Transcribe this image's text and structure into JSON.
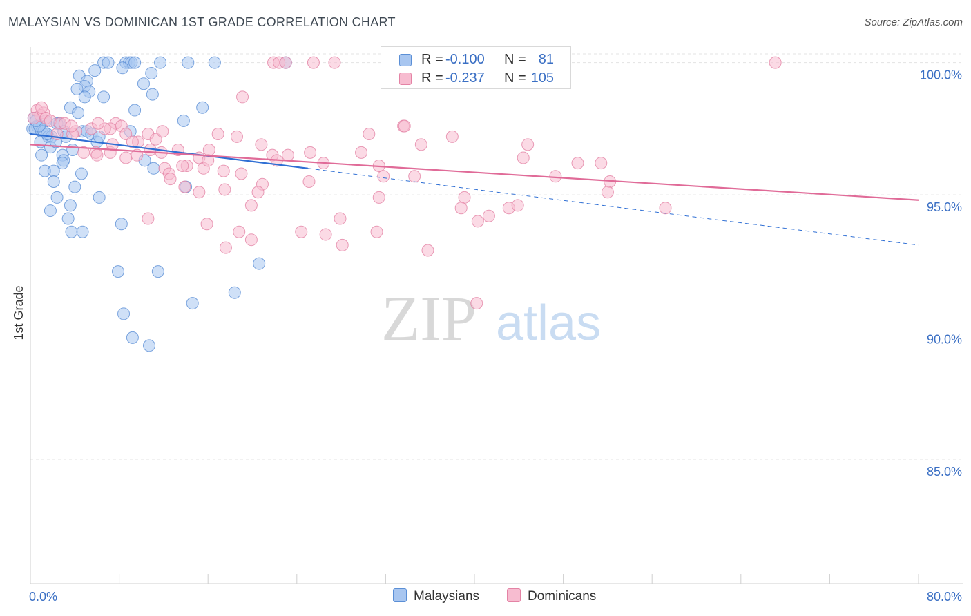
{
  "title": "MALAYSIAN VS DOMINICAN 1ST GRADE CORRELATION CHART",
  "source": "Source: ZipAtlas.com",
  "watermark": {
    "zip": "ZIP",
    "atlas": "atlas"
  },
  "stats": [
    {
      "r_label": "R =",
      "r_value": "-0.100",
      "n_label": "N =",
      "n_value": "81",
      "color": "#a8c6f0",
      "border": "#5b8fd6"
    },
    {
      "r_label": "R =",
      "r_value": "-0.237",
      "n_label": "N =",
      "n_value": "105",
      "color": "#f7bcd0",
      "border": "#e483a5"
    }
  ],
  "legend": [
    {
      "label": "Malaysians",
      "color": "#a8c6f0",
      "border": "#5b8fd6"
    },
    {
      "label": "Dominicans",
      "color": "#f7bcd0",
      "border": "#e483a5"
    }
  ],
  "chart_data": {
    "type": "scatter",
    "title": "MALAYSIAN VS DOMINICAN 1ST GRADE CORRELATION CHART",
    "xlabel": "",
    "ylabel": "1st Grade",
    "xlim": [
      0,
      80
    ],
    "ylim": [
      80.3,
      100.8
    ],
    "x_tick_labels": [
      {
        "value": 0,
        "label": "0.0%"
      },
      {
        "value": 80,
        "label": "80.0%"
      }
    ],
    "y_tick_labels": [
      {
        "value": 100,
        "label": "100.0%"
      },
      {
        "value": 95,
        "label": "95.0%"
      },
      {
        "value": 90,
        "label": "90.0%"
      },
      {
        "value": 85,
        "label": "85.0%"
      }
    ],
    "grid": true,
    "legend_position": "bottom-center",
    "series": [
      {
        "name": "Malaysians",
        "color": "#a8c6f0",
        "stroke": "#5b8fd6",
        "line_color": "#2f6fd4",
        "trend": {
          "x": [
            0,
            25
          ],
          "y": [
            97.3,
            96.0
          ],
          "dashed_to": [
            80,
            93.1
          ]
        },
        "points": [
          [
            6.6,
            100
          ],
          [
            7.0,
            100
          ],
          [
            8.6,
            100
          ],
          [
            8.9,
            100
          ],
          [
            9.1,
            100
          ],
          [
            9.4,
            100
          ],
          [
            11.7,
            100
          ],
          [
            14.2,
            100
          ],
          [
            16.6,
            100
          ],
          [
            23.0,
            100
          ],
          [
            8.3,
            99.8
          ],
          [
            5.8,
            99.7
          ],
          [
            10.9,
            99.6
          ],
          [
            4.4,
            99.5
          ],
          [
            5.1,
            99.3
          ],
          [
            10.2,
            99.2
          ],
          [
            4.9,
            99.1
          ],
          [
            4.2,
            99.0
          ],
          [
            5.3,
            98.9
          ],
          [
            11.0,
            98.8
          ],
          [
            4.9,
            98.7
          ],
          [
            6.6,
            98.7
          ],
          [
            3.6,
            98.3
          ],
          [
            9.4,
            98.2
          ],
          [
            15.5,
            98.3
          ],
          [
            4.3,
            98.1
          ],
          [
            0.3,
            97.9
          ],
          [
            1.4,
            97.8
          ],
          [
            2.6,
            97.7
          ],
          [
            2.4,
            97.7
          ],
          [
            0.6,
            97.6
          ],
          [
            0.2,
            97.5
          ],
          [
            0.4,
            97.5
          ],
          [
            1.0,
            97.4
          ],
          [
            1.2,
            97.4
          ],
          [
            3.0,
            97.4
          ],
          [
            4.7,
            97.4
          ],
          [
            5.1,
            97.4
          ],
          [
            5.5,
            97.3
          ],
          [
            1.6,
            97.2
          ],
          [
            1.9,
            97.2
          ],
          [
            3.2,
            97.2
          ],
          [
            0.9,
            97.0
          ],
          [
            6.0,
            97.0
          ],
          [
            1.8,
            96.8
          ],
          [
            3.8,
            96.7
          ],
          [
            2.9,
            96.5
          ],
          [
            1.0,
            96.5
          ],
          [
            3.0,
            96.3
          ],
          [
            2.9,
            96.2
          ],
          [
            10.3,
            96.3
          ],
          [
            13.8,
            97.8
          ],
          [
            9.0,
            97.4
          ],
          [
            11.1,
            96.0
          ],
          [
            1.3,
            95.9
          ],
          [
            2.1,
            95.9
          ],
          [
            4.6,
            95.8
          ],
          [
            2.1,
            95.5
          ],
          [
            4.0,
            95.3
          ],
          [
            14.0,
            95.3
          ],
          [
            2.4,
            94.9
          ],
          [
            6.2,
            94.9
          ],
          [
            3.6,
            94.6
          ],
          [
            1.8,
            94.4
          ],
          [
            3.4,
            94.1
          ],
          [
            8.2,
            93.9
          ],
          [
            3.7,
            93.6
          ],
          [
            4.7,
            93.6
          ],
          [
            20.6,
            92.4
          ],
          [
            7.9,
            92.1
          ],
          [
            11.5,
            92.1
          ],
          [
            18.4,
            91.3
          ],
          [
            14.6,
            90.9
          ],
          [
            8.4,
            90.5
          ],
          [
            9.2,
            89.6
          ],
          [
            10.7,
            89.3
          ],
          [
            0.8,
            97.6
          ],
          [
            1.5,
            97.3
          ],
          [
            6.2,
            97.2
          ],
          [
            2.3,
            97.0
          ],
          [
            0.5,
            97.8
          ]
        ]
      },
      {
        "name": "Dominicans",
        "color": "#f7bcd0",
        "stroke": "#e483a5",
        "line_color": "#e06b98",
        "trend": {
          "x": [
            0,
            80
          ],
          "y": [
            96.9,
            94.8
          ]
        },
        "points": [
          [
            21.9,
            100
          ],
          [
            22.4,
            100
          ],
          [
            23.0,
            100
          ],
          [
            25.5,
            100
          ],
          [
            27.4,
            100
          ],
          [
            32.1,
            100
          ],
          [
            67.1,
            100
          ],
          [
            19.1,
            98.7
          ],
          [
            0.6,
            98.2
          ],
          [
            1.2,
            98.1
          ],
          [
            0.9,
            98.0
          ],
          [
            1.4,
            97.9
          ],
          [
            1.8,
            97.8
          ],
          [
            2.7,
            97.7
          ],
          [
            3.1,
            97.7
          ],
          [
            7.7,
            97.7
          ],
          [
            8.2,
            97.6
          ],
          [
            7.2,
            97.5
          ],
          [
            6.7,
            97.5
          ],
          [
            5.5,
            97.5
          ],
          [
            4.1,
            97.4
          ],
          [
            3.8,
            97.3
          ],
          [
            8.6,
            97.3
          ],
          [
            10.6,
            97.3
          ],
          [
            16.9,
            97.3
          ],
          [
            18.6,
            97.2
          ],
          [
            30.5,
            97.3
          ],
          [
            33.6,
            97.6
          ],
          [
            33.7,
            97.6
          ],
          [
            38.0,
            97.2
          ],
          [
            11.3,
            97.1
          ],
          [
            9.7,
            97.0
          ],
          [
            9.2,
            97.0
          ],
          [
            20.8,
            96.9
          ],
          [
            35.2,
            96.9
          ],
          [
            44.8,
            96.9
          ],
          [
            4.8,
            96.6
          ],
          [
            5.9,
            96.6
          ],
          [
            7.2,
            96.6
          ],
          [
            10.8,
            96.7
          ],
          [
            11.8,
            96.6
          ],
          [
            13.3,
            96.7
          ],
          [
            16.1,
            96.7
          ],
          [
            21.8,
            96.5
          ],
          [
            23.2,
            96.5
          ],
          [
            25.2,
            96.6
          ],
          [
            29.8,
            96.6
          ],
          [
            6.0,
            96.5
          ],
          [
            8.6,
            96.4
          ],
          [
            15.2,
            96.4
          ],
          [
            14.1,
            96.1
          ],
          [
            15.6,
            96.0
          ],
          [
            17.4,
            95.9
          ],
          [
            22.2,
            96.3
          ],
          [
            31.4,
            96.1
          ],
          [
            12.1,
            96.0
          ],
          [
            12.5,
            95.8
          ],
          [
            12.6,
            95.6
          ],
          [
            19.0,
            95.8
          ],
          [
            20.9,
            95.4
          ],
          [
            25.1,
            95.5
          ],
          [
            31.8,
            95.7
          ],
          [
            34.6,
            95.7
          ],
          [
            44.4,
            96.4
          ],
          [
            47.3,
            95.7
          ],
          [
            49.3,
            96.2
          ],
          [
            51.4,
            96.2
          ],
          [
            52.2,
            95.5
          ],
          [
            13.9,
            95.3
          ],
          [
            15.2,
            95.1
          ],
          [
            17.5,
            95.2
          ],
          [
            20.5,
            95.1
          ],
          [
            31.4,
            94.9
          ],
          [
            39.1,
            94.9
          ],
          [
            52.0,
            95.1
          ],
          [
            19.9,
            94.6
          ],
          [
            38.8,
            94.5
          ],
          [
            43.1,
            94.5
          ],
          [
            43.9,
            94.6
          ],
          [
            57.2,
            94.5
          ],
          [
            10.6,
            94.1
          ],
          [
            15.9,
            93.9
          ],
          [
            27.9,
            94.1
          ],
          [
            40.3,
            94.0
          ],
          [
            41.3,
            94.2
          ],
          [
            18.8,
            93.6
          ],
          [
            19.9,
            93.3
          ],
          [
            24.4,
            93.6
          ],
          [
            26.6,
            93.5
          ],
          [
            28.1,
            93.1
          ],
          [
            31.2,
            93.6
          ],
          [
            17.6,
            93.0
          ],
          [
            35.8,
            92.9
          ],
          [
            40.2,
            90.9
          ],
          [
            2.4,
            97.3
          ],
          [
            3.7,
            97.6
          ],
          [
            6.1,
            97.7
          ],
          [
            9.6,
            96.5
          ],
          [
            13.7,
            96.1
          ],
          [
            16.0,
            96.3
          ],
          [
            7.4,
            96.9
          ],
          [
            11.9,
            97.4
          ],
          [
            1.0,
            98.3
          ],
          [
            0.3,
            97.9
          ],
          [
            26.4,
            96.2
          ]
        ]
      }
    ]
  }
}
